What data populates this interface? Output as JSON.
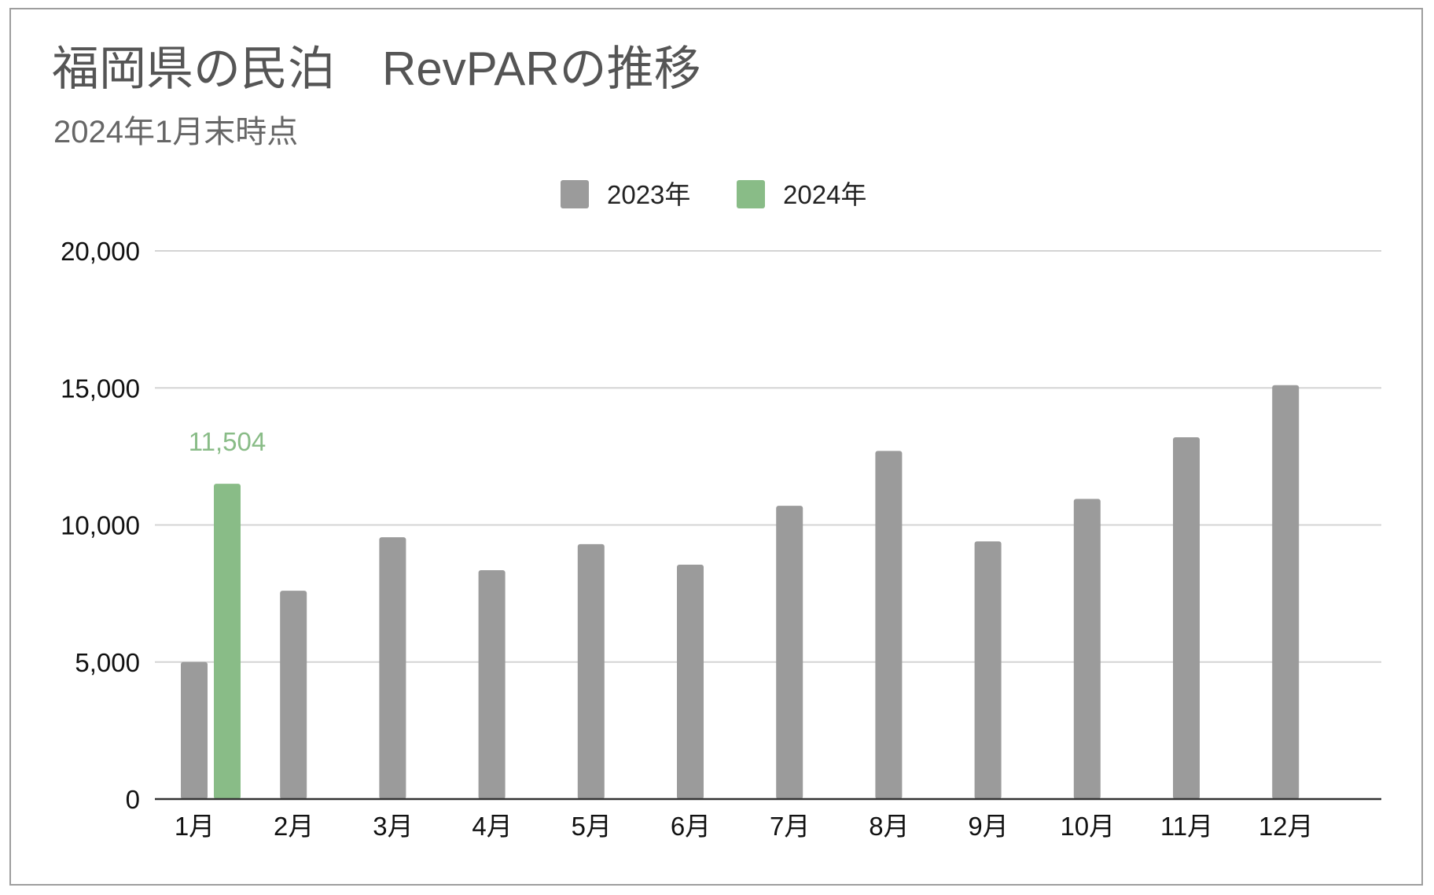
{
  "chart": {
    "title": "福岡県の民泊　RevPARの推移",
    "subtitle": "2024年1月末時点"
  },
  "colors": {
    "series_2023": "#9b9b9b",
    "series_2024": "#89bc87",
    "gridline": "#d4d4d4",
    "baseline": "#333333"
  },
  "chart_data": {
    "type": "bar",
    "title": "福岡県の民泊　RevPARの推移",
    "subtitle": "2024年1月末時点",
    "categories": [
      "1月",
      "2月",
      "3月",
      "4月",
      "5月",
      "6月",
      "7月",
      "8月",
      "9月",
      "10月",
      "11月",
      "12月"
    ],
    "series": [
      {
        "name": "2023年",
        "color": "#9b9b9b",
        "values": [
          5000,
          7600,
          9550,
          8350,
          9300,
          8550,
          10700,
          12700,
          9400,
          10950,
          13200,
          15100
        ]
      },
      {
        "name": "2024年",
        "color": "#89bc87",
        "values": [
          11504,
          null,
          null,
          null,
          null,
          null,
          null,
          null,
          null,
          null,
          null,
          null
        ]
      }
    ],
    "data_labels": [
      {
        "series": 1,
        "index": 0,
        "text": "11,504"
      }
    ],
    "ylim": [
      0,
      20000
    ],
    "yticks": [
      0,
      5000,
      10000,
      15000,
      20000
    ],
    "ytick_labels": [
      "0",
      "5,000",
      "10,000",
      "15,000",
      "20,000"
    ],
    "xlabel": "",
    "ylabel": "",
    "grid": true,
    "legend_position": "top-center"
  }
}
